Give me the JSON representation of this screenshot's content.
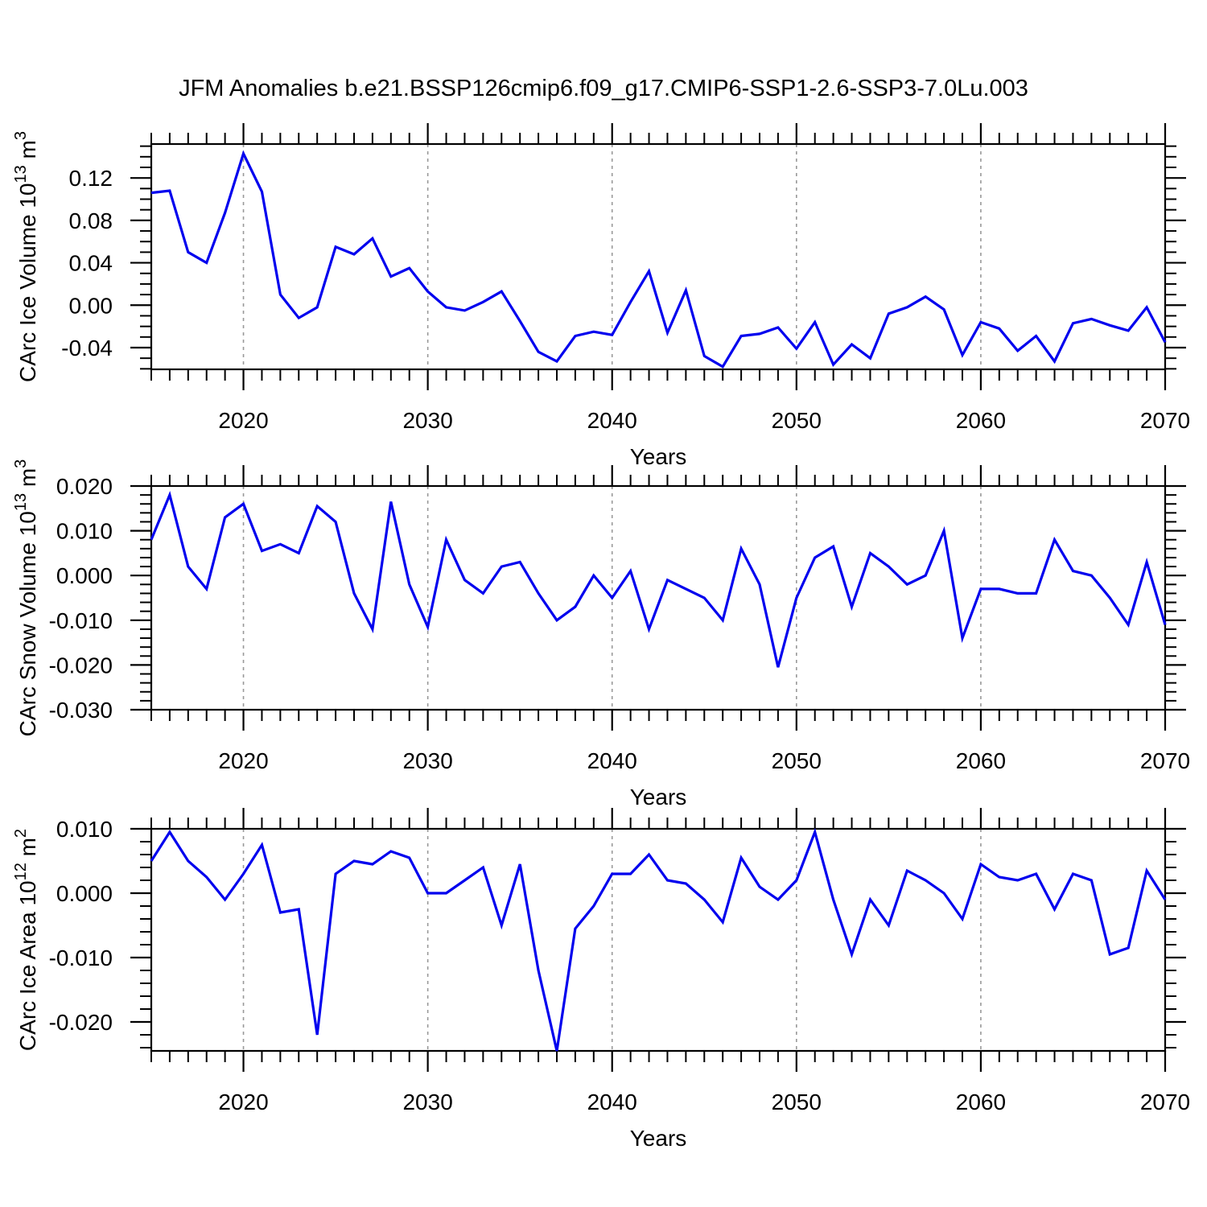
{
  "figure": {
    "title": "JFM Anomalies b.e21.BSSP126cmip6.f09_g17.CMIP6-SSP1-2.6-SSP3-7.0Lu.003",
    "line_color": "#0000ee",
    "axis_color": "#000000",
    "grid_color": "#999999",
    "background": "#ffffff"
  },
  "chart_data": [
    {
      "type": "line",
      "title": "",
      "xlabel": "Years",
      "ylabel": "CArc Ice Volume 10^13 m^3",
      "ylabel_parts": [
        {
          "t": "CArc Ice Volume 10"
        },
        {
          "sup": "13"
        },
        {
          "t": " m"
        },
        {
          "sup": "3"
        }
      ],
      "legend": "none",
      "grid": "vertical-dashed-decades",
      "grid_x": [
        2020,
        2030,
        2040,
        2050,
        2060
      ],
      "xlim": [
        2015,
        2070
      ],
      "xticks": [
        2020,
        2030,
        2040,
        2050,
        2060,
        2070
      ],
      "xtick_labels": [
        "2020",
        "2030",
        "2040",
        "2050",
        "2060",
        "2070"
      ],
      "x_minor_step": 1,
      "ylim": [
        -0.0605,
        0.152
      ],
      "yticks": [
        -0.04,
        0.0,
        0.04,
        0.08,
        0.12
      ],
      "ytick_labels": [
        "-0.04",
        "0.00",
        "0.04",
        "0.08",
        "0.12"
      ],
      "y_minor_step": 0.01,
      "x": [
        2015,
        2016,
        2017,
        2018,
        2019,
        2020,
        2021,
        2022,
        2023,
        2024,
        2025,
        2026,
        2027,
        2028,
        2029,
        2030,
        2031,
        2032,
        2033,
        2034,
        2035,
        2036,
        2037,
        2038,
        2039,
        2040,
        2041,
        2042,
        2043,
        2044,
        2045,
        2046,
        2047,
        2048,
        2049,
        2050,
        2051,
        2052,
        2053,
        2054,
        2055,
        2056,
        2057,
        2058,
        2059,
        2060,
        2061,
        2062,
        2063,
        2064,
        2065,
        2066,
        2067,
        2068,
        2069,
        2070
      ],
      "values": [
        0.106,
        0.108,
        0.05,
        0.04,
        0.087,
        0.143,
        0.107,
        0.01,
        -0.012,
        -0.002,
        0.055,
        0.048,
        0.063,
        0.027,
        0.035,
        0.013,
        -0.002,
        -0.005,
        0.003,
        0.013,
        -0.015,
        -0.044,
        -0.053,
        -0.029,
        -0.025,
        -0.028,
        0.003,
        0.032,
        -0.026,
        0.014,
        -0.048,
        -0.058,
        -0.029,
        -0.027,
        -0.021,
        -0.041,
        -0.016,
        -0.056,
        -0.037,
        -0.05,
        -0.008,
        -0.002,
        0.008,
        -0.004,
        -0.047,
        -0.016,
        -0.022,
        -0.043,
        -0.029,
        -0.053,
        -0.017,
        -0.013,
        -0.019,
        -0.024,
        -0.002,
        -0.035
      ]
    },
    {
      "type": "line",
      "title": "",
      "xlabel": "Years",
      "ylabel": "CArc Snow Volume 10^13 m^3",
      "ylabel_parts": [
        {
          "t": "CArc Snow Volume 10"
        },
        {
          "sup": "13"
        },
        {
          "t": " m"
        },
        {
          "sup": "3"
        }
      ],
      "legend": "none",
      "grid": "vertical-dashed-decades",
      "grid_x": [
        2020,
        2030,
        2040,
        2050,
        2060
      ],
      "xlim": [
        2015,
        2070
      ],
      "xticks": [
        2020,
        2030,
        2040,
        2050,
        2060,
        2070
      ],
      "xtick_labels": [
        "2020",
        "2030",
        "2040",
        "2050",
        "2060",
        "2070"
      ],
      "x_minor_step": 1,
      "ylim": [
        -0.03,
        0.02
      ],
      "yticks": [
        -0.03,
        -0.02,
        -0.01,
        0.0,
        0.01,
        0.02
      ],
      "ytick_labels": [
        "-0.030",
        "-0.020",
        "-0.010",
        "0.000",
        "0.010",
        "0.020"
      ],
      "y_minor_step": 0.002,
      "x": [
        2015,
        2016,
        2017,
        2018,
        2019,
        2020,
        2021,
        2022,
        2023,
        2024,
        2025,
        2026,
        2027,
        2028,
        2029,
        2030,
        2031,
        2032,
        2033,
        2034,
        2035,
        2036,
        2037,
        2038,
        2039,
        2040,
        2041,
        2042,
        2043,
        2044,
        2045,
        2046,
        2047,
        2048,
        2049,
        2050,
        2051,
        2052,
        2053,
        2054,
        2055,
        2056,
        2057,
        2058,
        2059,
        2060,
        2061,
        2062,
        2063,
        2064,
        2065,
        2066,
        2067,
        2068,
        2069,
        2070
      ],
      "values": [
        0.008,
        0.018,
        0.002,
        -0.003,
        0.013,
        0.016,
        0.0055,
        0.007,
        0.005,
        0.0155,
        0.012,
        -0.004,
        -0.012,
        0.0165,
        -0.002,
        -0.0115,
        0.008,
        -0.001,
        -0.004,
        0.002,
        0.003,
        -0.004,
        -0.01,
        -0.007,
        0.0,
        -0.005,
        0.001,
        -0.012,
        -0.001,
        -0.003,
        -0.005,
        -0.01,
        0.006,
        -0.002,
        -0.0205,
        -0.005,
        0.004,
        0.0065,
        -0.007,
        0.005,
        0.002,
        -0.002,
        0.0,
        0.01,
        -0.014,
        -0.003,
        -0.003,
        -0.004,
        -0.004,
        0.008,
        0.001,
        0.0,
        -0.005,
        -0.011,
        0.003,
        -0.011
      ]
    },
    {
      "type": "line",
      "title": "",
      "xlabel": "Years",
      "ylabel": "CArc Ice Area 10^12 m^2",
      "ylabel_parts": [
        {
          "t": "CArc Ice Area 10"
        },
        {
          "sup": "12"
        },
        {
          "t": " m"
        },
        {
          "sup": "2"
        }
      ],
      "legend": "none",
      "grid": "vertical-dashed-decades",
      "grid_x": [
        2020,
        2030,
        2040,
        2050,
        2060
      ],
      "xlim": [
        2015,
        2070
      ],
      "xticks": [
        2020,
        2030,
        2040,
        2050,
        2060,
        2070
      ],
      "xtick_labels": [
        "2020",
        "2030",
        "2040",
        "2050",
        "2060",
        "2070"
      ],
      "x_minor_step": 1,
      "ylim": [
        -0.0245,
        0.01
      ],
      "yticks": [
        -0.02,
        -0.01,
        0.0,
        0.01
      ],
      "ytick_labels": [
        "-0.020",
        "-0.010",
        "0.000",
        "0.010"
      ],
      "y_minor_step": 0.002,
      "x": [
        2015,
        2016,
        2017,
        2018,
        2019,
        2020,
        2021,
        2022,
        2023,
        2024,
        2025,
        2026,
        2027,
        2028,
        2029,
        2030,
        2031,
        2032,
        2033,
        2034,
        2035,
        2036,
        2037,
        2038,
        2039,
        2040,
        2041,
        2042,
        2043,
        2044,
        2045,
        2046,
        2047,
        2048,
        2049,
        2050,
        2051,
        2052,
        2053,
        2054,
        2055,
        2056,
        2057,
        2058,
        2059,
        2060,
        2061,
        2062,
        2063,
        2064,
        2065,
        2066,
        2067,
        2068,
        2069,
        2070
      ],
      "values": [
        0.005,
        0.0095,
        0.005,
        0.0025,
        -0.001,
        0.003,
        0.0075,
        -0.003,
        -0.0025,
        -0.022,
        0.003,
        0.005,
        0.0045,
        0.0065,
        0.0055,
        0.0,
        0.0,
        0.002,
        0.004,
        -0.005,
        0.0045,
        -0.012,
        -0.0245,
        -0.0055,
        -0.002,
        0.003,
        0.003,
        0.006,
        0.002,
        0.0015,
        -0.001,
        -0.0045,
        0.0055,
        0.001,
        -0.001,
        0.002,
        0.0095,
        -0.001,
        -0.0095,
        -0.001,
        -0.005,
        0.0035,
        0.002,
        0.0,
        -0.004,
        0.0045,
        0.0025,
        0.002,
        0.003,
        -0.0025,
        0.003,
        0.002,
        -0.0095,
        -0.0085,
        0.0035,
        -0.001
      ]
    }
  ]
}
